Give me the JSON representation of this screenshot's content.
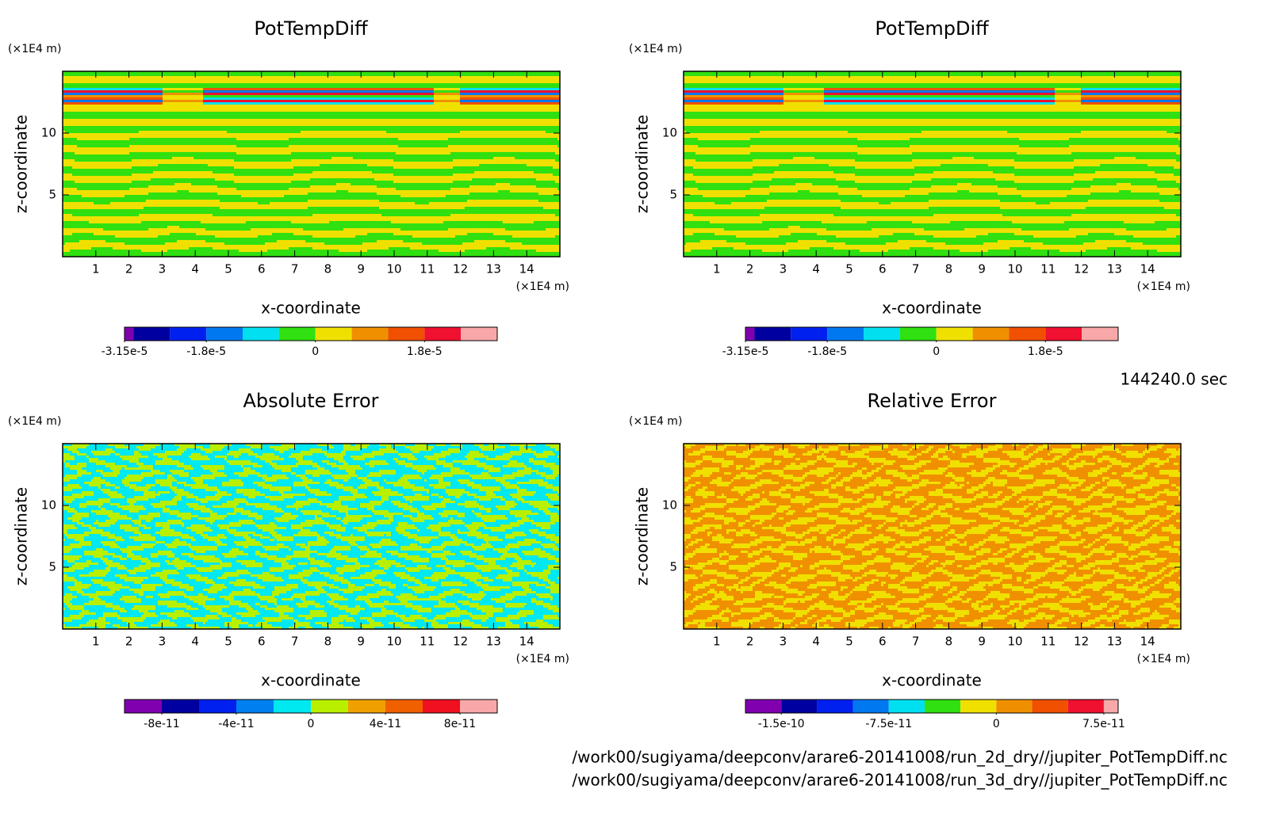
{
  "chart_data": [
    {
      "type": "contour",
      "title": "PotTempDiff",
      "xlabel": "x-coordinate",
      "ylabel": "z-coordinate",
      "xunit": "(×1E4 m)",
      "yunit": "(×1E4 m)",
      "xlim": [
        0,
        15
      ],
      "ylim": [
        0,
        15
      ],
      "xticks": [
        1,
        2,
        3,
        4,
        5,
        6,
        7,
        8,
        9,
        10,
        11,
        12,
        13,
        14
      ],
      "yticks": [
        5,
        10
      ],
      "field": "bands",
      "levels": [
        -3.15e-05,
        -3e-05,
        -2.4e-05,
        -1.8e-05,
        -1.2e-05,
        -6e-06,
        0,
        6e-06,
        1.2e-05,
        1.8e-05,
        2.4e-05,
        3e-05
      ],
      "colors": [
        "#8000b0",
        "#0000a0",
        "#0020f0",
        "#0078f0",
        "#00e0f0",
        "#30e010",
        "#f0e000",
        "#f09000",
        "#f05000",
        "#f01030",
        "#f8a8a8"
      ],
      "cbticks": [
        {
          "value": -3.15e-05,
          "label": "-3.15e-5"
        },
        {
          "value": -1.8e-05,
          "label": "-1.8e-5"
        },
        0,
        {
          "value": 1.8e-05,
          "label": "1.8e-5"
        }
      ]
    },
    {
      "type": "contour",
      "title": "PotTempDiff",
      "xlabel": "x-coordinate",
      "ylabel": "z-coordinate",
      "xunit": "(×1E4 m)",
      "yunit": "(×1E4 m)",
      "xlim": [
        0,
        15
      ],
      "ylim": [
        0,
        15
      ],
      "xticks": [
        1,
        2,
        3,
        4,
        5,
        6,
        7,
        8,
        9,
        10,
        11,
        12,
        13,
        14
      ],
      "yticks": [
        5,
        10
      ],
      "field": "bands",
      "levels": [
        -3.15e-05,
        -3e-05,
        -2.4e-05,
        -1.8e-05,
        -1.2e-05,
        -6e-06,
        0,
        6e-06,
        1.2e-05,
        1.8e-05,
        2.4e-05,
        3e-05
      ],
      "colors": [
        "#8000b0",
        "#0000a0",
        "#0020f0",
        "#0078f0",
        "#00e0f0",
        "#30e010",
        "#f0e000",
        "#f09000",
        "#f05000",
        "#f01030",
        "#f8a8a8"
      ],
      "cbticks": [
        {
          "value": -3.15e-05,
          "label": "-3.15e-5"
        },
        {
          "value": -1.8e-05,
          "label": "-1.8e-5"
        },
        0,
        {
          "value": 1.8e-05,
          "label": "1.8e-5"
        }
      ]
    },
    {
      "type": "contour",
      "title": "Absolute Error",
      "xlabel": "x-coordinate",
      "ylabel": "z-coordinate",
      "xunit": "(×1E4 m)",
      "yunit": "(×1E4 m)",
      "xlim": [
        0,
        15
      ],
      "ylim": [
        0,
        15
      ],
      "xticks": [
        1,
        2,
        3,
        4,
        5,
        6,
        7,
        8,
        9,
        10,
        11,
        12,
        13,
        14
      ],
      "yticks": [
        5,
        10
      ],
      "field": "abs",
      "levels": [
        -1e-10,
        -8e-11,
        -6e-11,
        -4e-11,
        -2e-11,
        0,
        2e-11,
        4e-11,
        6e-11,
        8e-11,
        1e-10
      ],
      "colors": [
        "#8000b0",
        "#0000a0",
        "#0020f0",
        "#0080f0",
        "#00e8f0",
        "#b8f000",
        "#f0a000",
        "#f06000",
        "#f01020",
        "#f8a8a8"
      ],
      "cbticks": [
        {
          "value": -8e-11,
          "label": "-8e-11"
        },
        {
          "value": -4e-11,
          "label": "-4e-11"
        },
        0,
        {
          "value": 4e-11,
          "label": "4e-11"
        },
        {
          "value": 8e-11,
          "label": "8e-11"
        }
      ]
    },
    {
      "type": "contour",
      "title": "Relative Error",
      "xlabel": "x-coordinate",
      "ylabel": "z-coordinate",
      "xunit": "(×1E4 m)",
      "yunit": "(×1E4 m)",
      "xlim": [
        0,
        15
      ],
      "ylim": [
        0,
        15
      ],
      "xticks": [
        1,
        2,
        3,
        4,
        5,
        6,
        7,
        8,
        9,
        10,
        11,
        12,
        13,
        14
      ],
      "yticks": [
        5,
        10
      ],
      "field": "rel",
      "levels": [
        -1.75e-10,
        -1.5e-10,
        -1.25e-10,
        -1e-10,
        -7.5e-11,
        -5e-11,
        -2.5e-11,
        0,
        2.5e-11,
        5e-11,
        7.5e-11,
        8.5e-11
      ],
      "colors": [
        "#8000b0",
        "#0000a0",
        "#0020f0",
        "#0078f0",
        "#00e0f0",
        "#30e010",
        "#f0e000",
        "#f09000",
        "#f05000",
        "#f01030",
        "#f8a8a8"
      ],
      "cbticks": [
        {
          "value": -1.5e-10,
          "label": "-1.5e-10"
        },
        {
          "value": -7.5e-11,
          "label": "-7.5e-11"
        },
        0,
        {
          "value": 7.5e-11,
          "label": "7.5e-11"
        }
      ]
    }
  ],
  "time_label": "144240.0 sec",
  "files": [
    "/work00/sugiyama/deepconv/arare6-20141008/run_2d_dry//jupiter_PotTempDiff.nc",
    "/work00/sugiyama/deepconv/arare6-20141008/run_3d_dry//jupiter_PotTempDiff.nc"
  ]
}
